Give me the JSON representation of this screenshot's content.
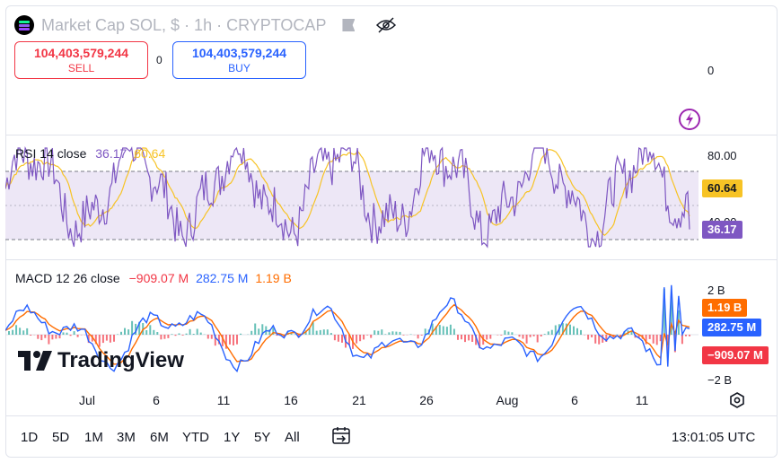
{
  "header": {
    "title": "Market Cap SOL, $ · 1h · CRYPTOCAP"
  },
  "prices": {
    "sell_value": "104,403,579,244",
    "sell_label": "SELL",
    "spread": "0",
    "buy_value": "104,403,579,244",
    "buy_label": "BUY"
  },
  "main_pane": {
    "axis_label": "0"
  },
  "rsi": {
    "label": "RSI 14 close",
    "value_rsi": "36.17",
    "value_ma": "60.64",
    "axis_top": "80.00",
    "axis_mid": "40.00",
    "tag_ma": "60.64",
    "tag_rsi": "36.17",
    "colors": {
      "rsi": "#7e57c2",
      "ma": "#f7c325",
      "band": "#ede7f6"
    }
  },
  "macd": {
    "label": "MACD 12 26 close",
    "value_hist": "−909.07 M",
    "value_macd": "282.75 M",
    "value_signal": "1.19 B",
    "axis_top": "2 B",
    "axis_bottom": "−2 B",
    "tag_signal": "1.19 B",
    "tag_macd": "282.75 M",
    "tag_hist": "−909.07 M",
    "colors": {
      "macd": "#2962ff",
      "signal": "#ff6d00",
      "hist_up": "#26a69a",
      "hist_down": "#f23645"
    }
  },
  "x_axis": {
    "ticks": [
      "Jul",
      "6",
      "11",
      "16",
      "21",
      "26",
      "Aug",
      "6",
      "11"
    ]
  },
  "branding": {
    "logo_text": "TradingView"
  },
  "toolbar": {
    "timeframes": [
      "1D",
      "5D",
      "1M",
      "3M",
      "6M",
      "YTD",
      "1Y",
      "5Y",
      "All"
    ],
    "clock": "13:01:05 UTC"
  },
  "icons": [
    "solana-logo-icon",
    "flag-icon",
    "eye-hidden-icon",
    "lightning-icon",
    "settings-icon",
    "compare-range-icon"
  ]
}
